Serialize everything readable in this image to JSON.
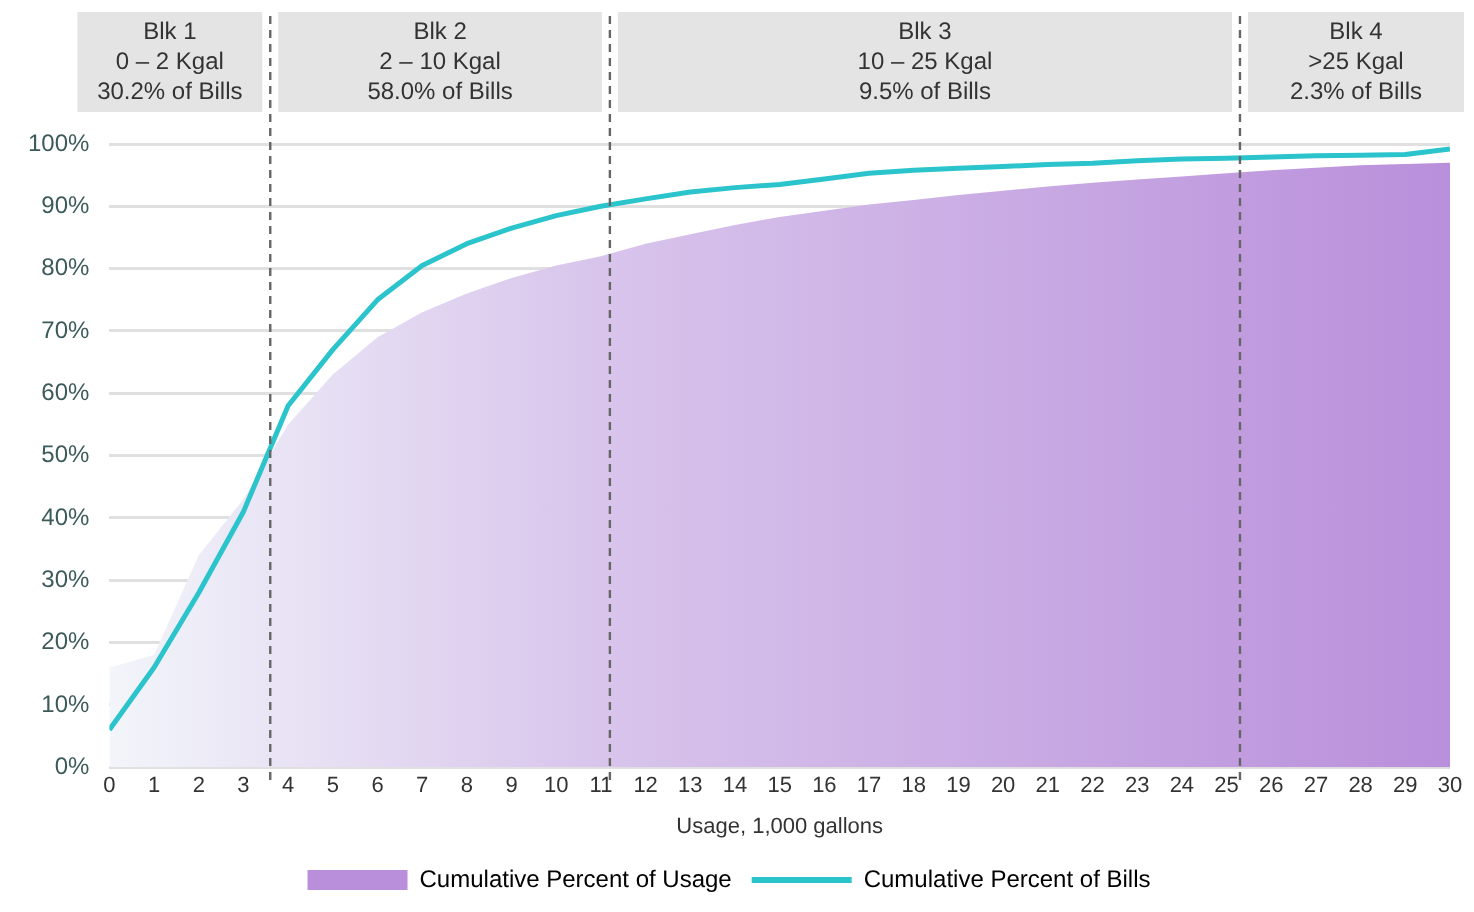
{
  "chart_data": {
    "type": "area",
    "xlabel": "Usage, 1,000 gallons",
    "x": [
      0,
      1,
      2,
      3,
      4,
      5,
      6,
      7,
      8,
      9,
      10,
      11,
      12,
      13,
      14,
      15,
      16,
      17,
      18,
      19,
      20,
      21,
      22,
      23,
      24,
      25,
      26,
      27,
      28,
      29,
      30
    ],
    "xlim": [
      0,
      30
    ],
    "xticks": [
      0,
      1,
      2,
      3,
      4,
      5,
      6,
      7,
      8,
      9,
      10,
      11,
      12,
      13,
      14,
      15,
      16,
      17,
      18,
      19,
      20,
      21,
      22,
      23,
      24,
      25,
      26,
      27,
      28,
      29,
      30
    ],
    "ylim": [
      0,
      100
    ],
    "yticks": [
      {
        "value": 0,
        "label": "0%"
      },
      {
        "value": 10,
        "label": "10%"
      },
      {
        "value": 20,
        "label": "20%"
      },
      {
        "value": 30,
        "label": "30%"
      },
      {
        "value": 40,
        "label": "40%"
      },
      {
        "value": 50,
        "label": "50%"
      },
      {
        "value": 60,
        "label": "60%"
      },
      {
        "value": 70,
        "label": "70%"
      },
      {
        "value": 80,
        "label": "80%"
      },
      {
        "value": 90,
        "label": "90%"
      },
      {
        "value": 100,
        "label": "100%"
      }
    ],
    "series": [
      {
        "name": "Cumulative Percent of Usage",
        "color": "#b98fdb",
        "values": [
          16,
          18,
          34,
          43,
          55,
          63,
          69,
          73,
          76,
          78.5,
          80.5,
          82,
          84,
          85.5,
          87,
          88.3,
          89.3,
          90.3,
          91,
          91.8,
          92.5,
          93.2,
          93.8,
          94.3,
          94.8,
          95.3,
          95.8,
          96.2,
          96.6,
          96.8,
          97
        ]
      },
      {
        "name": "Cumulative Percent of Bills",
        "type": "line",
        "color": "#2bc4cc",
        "values": [
          6,
          16,
          28,
          41,
          58,
          67,
          75,
          80.5,
          84,
          86.5,
          88.5,
          90,
          91.2,
          92.3,
          93,
          93.5,
          94.4,
          95.3,
          95.8,
          96.1,
          96.4,
          96.7,
          96.9,
          97.3,
          97.6,
          97.7,
          97.9,
          98.1,
          98.2,
          98.3,
          99.2
        ]
      }
    ],
    "ref_lines": [
      {
        "axis": "x",
        "value": 3.6,
        "color": "#666666",
        "line_style": "dashed"
      },
      {
        "axis": "x",
        "value": 11.2,
        "color": "#666666",
        "line_style": "dashed"
      },
      {
        "axis": "x",
        "value": 25.3,
        "color": "#666666",
        "line_style": "dashed"
      }
    ],
    "annotations": [
      "Blk 1\n0 – 2 Kgal\n30.2% of Bills",
      "Blk 2\n2 – 10 Kgal\n58.0% of Bills",
      "Blk 3\n10 – 25 Kgal\n9.5% of Bills",
      "Blk 4\n>25 Kgal\n2.3% of Bills"
    ],
    "grid": "y",
    "legend": "bottom",
    "marker": "none",
    "line_style": "solid"
  }
}
